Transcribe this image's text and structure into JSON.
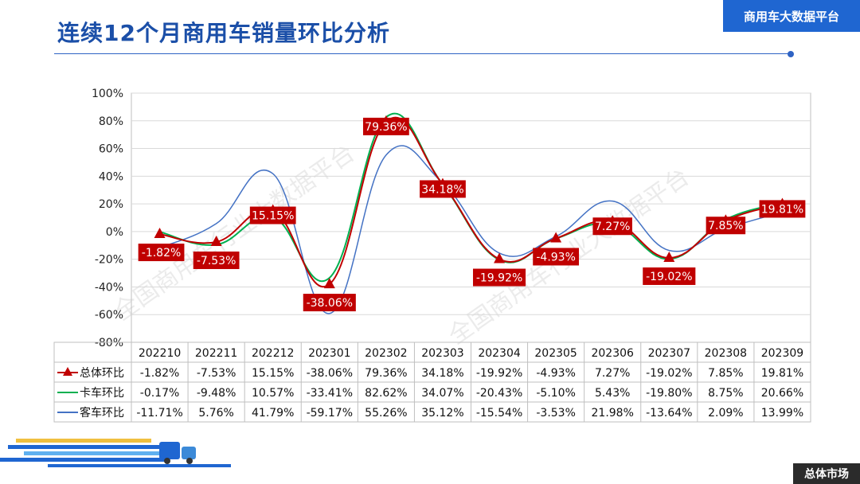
{
  "header": {
    "title": "连续12个月商用车销量环比分析",
    "platform": "商用车大数据平台"
  },
  "footer": {
    "section": "总体市场"
  },
  "watermark": "全国商用车行业大数据平台",
  "colors": {
    "title": "#1b4fa8",
    "badge": "#1f66d1",
    "total": "#c00000",
    "truck": "#00b050",
    "bus": "#4472c4"
  },
  "chart_data": {
    "type": "line",
    "categories": [
      "202210",
      "202211",
      "202212",
      "202301",
      "202302",
      "202303",
      "202304",
      "202305",
      "202306",
      "202307",
      "202308",
      "202309"
    ],
    "ylim": [
      -80,
      100
    ],
    "yticks": [
      "100%",
      "80%",
      "60%",
      "40%",
      "20%",
      "0%",
      "-20%",
      "-40%",
      "-60%",
      "-80%"
    ],
    "series": [
      {
        "name": "总体环比",
        "values": [
          -1.82,
          -7.53,
          15.15,
          -38.06,
          79.36,
          34.18,
          -19.92,
          -4.93,
          7.27,
          -19.02,
          7.85,
          19.81
        ],
        "labels": [
          "-1.82%",
          "-7.53%",
          "15.15%",
          "-38.06%",
          "79.36%",
          "34.18%",
          "-19.92%",
          "-4.93%",
          "7.27%",
          "-19.02%",
          "7.85%",
          "19.81%"
        ]
      },
      {
        "name": "卡车环比",
        "values": [
          -0.17,
          -9.48,
          10.57,
          -33.41,
          82.62,
          34.07,
          -20.43,
          -5.1,
          5.43,
          -19.8,
          8.75,
          20.66
        ],
        "labels": [
          "-0.17%",
          "-9.48%",
          "10.57%",
          "-33.41%",
          "82.62%",
          "34.07%",
          "-20.43%",
          "-5.10%",
          "5.43%",
          "-19.80%",
          "8.75%",
          "20.66%"
        ]
      },
      {
        "name": "客车环比",
        "values": [
          -11.71,
          5.76,
          41.79,
          -59.17,
          55.26,
          35.12,
          -15.54,
          -3.53,
          21.98,
          -13.64,
          2.09,
          13.99
        ],
        "labels": [
          "-11.71%",
          "5.76%",
          "41.79%",
          "-59.17%",
          "55.26%",
          "35.12%",
          "-15.54%",
          "-3.53%",
          "21.98%",
          "-13.64%",
          "2.09%",
          "13.99%"
        ]
      }
    ]
  }
}
